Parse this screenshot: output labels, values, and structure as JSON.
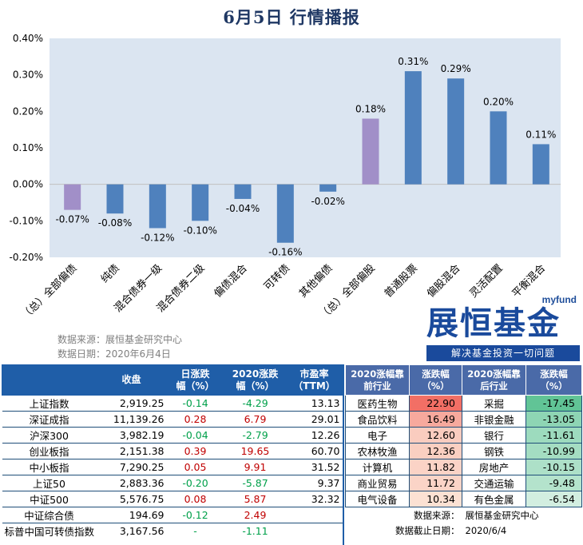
{
  "title": "6月5日  行情播报",
  "source_line1": "数据来源：展恒基金研究中心",
  "source_line2": "数据日期：2020年6月4日",
  "logo": {
    "brand_en": "myfund",
    "brand_cn": "展恒基金",
    "slogan": "解决基金投资一切问题"
  },
  "colors": {
    "bar_regular": "#4f81bd",
    "bar_total": "#a18fc8",
    "plot_bg": "#dbe5f1",
    "header_blue": "#1f5ea8",
    "up_red": "#c00000",
    "down_green": "#00a04a"
  },
  "chart_data": {
    "type": "bar",
    "categories": [
      "（总）全部偏债",
      "纯债",
      "混合债券一级",
      "混合债券二级",
      "偏债混合",
      "可转债",
      "其他偏债",
      "（总）全部偏股",
      "普通股票",
      "偏股混合",
      "灵活配置",
      "平衡混合"
    ],
    "values": [
      -0.07,
      -0.08,
      -0.12,
      -0.1,
      -0.04,
      -0.16,
      -0.02,
      0.18,
      0.31,
      0.29,
      0.2,
      0.11
    ],
    "value_labels": [
      "-0.07%",
      "-0.08%",
      "-0.12%",
      "-0.10%",
      "-0.04%",
      "-0.16%",
      "-0.02%",
      "0.18%",
      "0.31%",
      "0.29%",
      "0.20%",
      "0.11%"
    ],
    "total_categories": [
      0,
      7
    ],
    "y_ticks": [
      "0.40%",
      "0.30%",
      "0.20%",
      "0.10%",
      "0.00%",
      "-0.10%",
      "-0.20%"
    ],
    "ylim": [
      -0.2,
      0.4
    ],
    "grid": false,
    "title": "",
    "xlabel": "",
    "ylabel": ""
  },
  "index_table": {
    "headers": [
      "",
      "收盘",
      "日涨跌\n幅（%）",
      "2020涨跌\n幅（%）",
      "市盈率\n（TTM）"
    ],
    "rows": [
      {
        "name": "上证指数",
        "close": "2,919.25",
        "day": "-0.14",
        "ytd": "-4.29",
        "pe": "13.13"
      },
      {
        "name": "深证成指",
        "close": "11,139.26",
        "day": "0.28",
        "ytd": "6.79",
        "pe": "29.01"
      },
      {
        "name": "沪深300",
        "close": "3,982.19",
        "day": "-0.04",
        "ytd": "-2.79",
        "pe": "12.26"
      },
      {
        "name": "创业板指",
        "close": "2,151.38",
        "day": "0.39",
        "ytd": "19.65",
        "pe": "60.70"
      },
      {
        "name": "中小板指",
        "close": "7,290.25",
        "day": "0.05",
        "ytd": "9.91",
        "pe": "31.52"
      },
      {
        "name": "上证50",
        "close": "2,883.36",
        "day": "-0.20",
        "ytd": "-5.87",
        "pe": "9.37"
      },
      {
        "name": "中证500",
        "close": "5,576.75",
        "day": "0.08",
        "ytd": "5.87",
        "pe": "32.32"
      },
      {
        "name": "中证综合债",
        "close": "194.69",
        "day": "-0.12",
        "ytd": "2.49",
        "pe": ""
      },
      {
        "name": "标普中国可转债指数",
        "close": "3,167.56",
        "day": "-",
        "ytd": "-1.11",
        "pe": ""
      }
    ]
  },
  "industry_table": {
    "headers": [
      "2020涨幅靠\n前行业",
      "涨跌幅\n（%）",
      "2020涨幅靠\n后行业",
      "涨跌幅\n（%）"
    ],
    "rows": [
      {
        "top": "医药生物",
        "top_val": "22.90",
        "bottom": "采掘",
        "bottom_val": "-17.45"
      },
      {
        "top": "食品饮料",
        "top_val": "16.49",
        "bottom": "非银金融",
        "bottom_val": "-13.05"
      },
      {
        "top": "电子",
        "top_val": "12.60",
        "bottom": "银行",
        "bottom_val": "-11.61"
      },
      {
        "top": "农林牧渔",
        "top_val": "12.36",
        "bottom": "钢铁",
        "bottom_val": "-10.99"
      },
      {
        "top": "计算机",
        "top_val": "11.82",
        "bottom": "房地产",
        "bottom_val": "-10.15"
      },
      {
        "top": "商业贸易",
        "top_val": "11.72",
        "bottom": "交通运输",
        "bottom_val": "-9.48"
      },
      {
        "top": "电气设备",
        "top_val": "10.34",
        "bottom": "有色金属",
        "bottom_val": "-6.54"
      }
    ],
    "footer1_label": "数据来源：",
    "footer1_value": "展恒基金研究中心",
    "footer2_label": "数据截止日期：",
    "footer2_value": "2020/6/4"
  }
}
